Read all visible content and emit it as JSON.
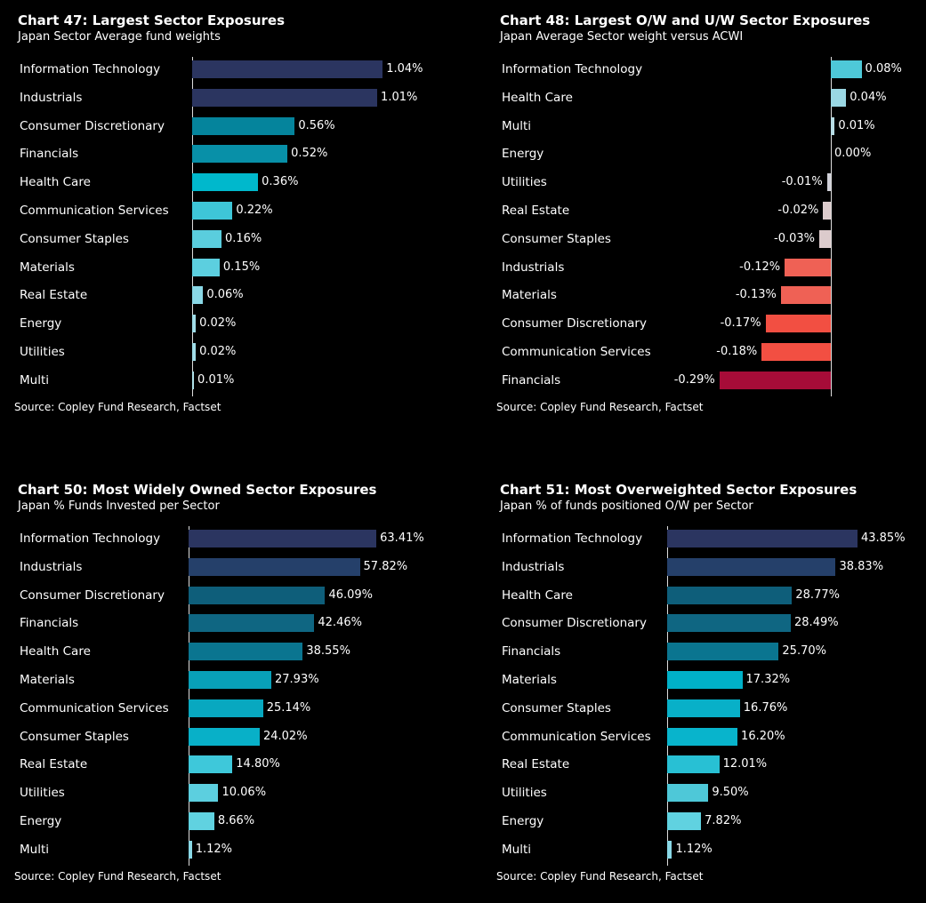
{
  "chart_data": [
    {
      "type": "bar",
      "title": "Chart 47:  Largest Sector Exposures",
      "subtitle": "Japan Sector Average fund weights",
      "source": "Source:  Copley Fund Research, Factset",
      "categories": [
        "Information Technology",
        "Industrials",
        "Consumer Discretionary",
        "Financials",
        "Health Care",
        "Communication Services",
        "Consumer Staples",
        "Materials",
        "Real Estate",
        "Energy",
        "Utilities",
        "Multi"
      ],
      "values": [
        1.04,
        1.01,
        0.56,
        0.52,
        0.36,
        0.22,
        0.16,
        0.15,
        0.06,
        0.02,
        0.02,
        0.01
      ],
      "labels": [
        "1.04%",
        "1.01%",
        "0.56%",
        "0.52%",
        "0.36%",
        "0.22%",
        "0.16%",
        "0.15%",
        "0.06%",
        "0.02%",
        "0.02%",
        "0.01%"
      ],
      "colors": [
        "#2b3560",
        "#2b3560",
        "#05849c",
        "#0890a8",
        "#00b8cc",
        "#3ec6d8",
        "#5acddd",
        "#5ccfdf",
        "#8ad8e6",
        "#a0dde8",
        "#a0dde8",
        "#b0e2ea"
      ],
      "unit": "%"
    },
    {
      "type": "bar",
      "title": "Chart 48:  Largest O/W and U/W Sector Exposures",
      "subtitle": "Japan Average Sector weight versus ACWI",
      "source": "Source:  Copley Fund Research, Factset",
      "categories": [
        "Information Technology",
        "Health Care",
        "Multi",
        "Energy",
        "Utilities",
        "Real Estate",
        "Consumer Staples",
        "Industrials",
        "Materials",
        "Consumer Discretionary",
        "Communication Services",
        "Financials"
      ],
      "values": [
        0.08,
        0.04,
        0.01,
        0.0,
        -0.01,
        -0.02,
        -0.03,
        -0.12,
        -0.13,
        -0.17,
        -0.18,
        -0.29
      ],
      "labels": [
        "0.08%",
        "0.04%",
        "0.01%",
        "0.00%",
        "-0.01%",
        "-0.02%",
        "-0.03%",
        "-0.12%",
        "-0.13%",
        "-0.17%",
        "-0.18%",
        "-0.29%"
      ],
      "colors": [
        "#4ec8d8",
        "#9ad7e3",
        "#b8dde5",
        "#cccccc",
        "#d0d0d8",
        "#dccbcc",
        "#dccbcc",
        "#ef6155",
        "#ef6155",
        "#f24f42",
        "#f24f42",
        "#a60c38"
      ],
      "unit": "%"
    },
    {
      "type": "bar",
      "title": "Chart 50:  Most Widely Owned Sector Exposures",
      "subtitle": "Japan % Funds Invested per Sector",
      "source": "Source:  Copley Fund Research, Factset",
      "categories": [
        "Information Technology",
        "Industrials",
        "Consumer Discretionary",
        "Financials",
        "Health Care",
        "Materials",
        "Communication Services",
        "Consumer Staples",
        "Real Estate",
        "Utilities",
        "Energy",
        "Multi"
      ],
      "values": [
        63.41,
        57.82,
        46.09,
        42.46,
        38.55,
        27.93,
        25.14,
        24.02,
        14.8,
        10.06,
        8.66,
        1.12
      ],
      "labels": [
        "63.41%",
        "57.82%",
        "46.09%",
        "42.46%",
        "38.55%",
        "27.93%",
        "25.14%",
        "24.02%",
        "14.80%",
        "10.06%",
        "8.66%",
        "1.12%"
      ],
      "colors": [
        "#2b3560",
        "#25406a",
        "#0e5e7a",
        "#0f6682",
        "#0a7590",
        "#08a0b8",
        "#08a8c0",
        "#08b0c8",
        "#3ec8da",
        "#5ccfdf",
        "#60d2e0",
        "#8ad8e6"
      ],
      "unit": "%"
    },
    {
      "type": "bar",
      "title": "Chart 51:  Most Overweighted Sector Exposures",
      "subtitle": "Japan % of funds positioned O/W per Sector",
      "source": "Source:  Copley Fund Research, Factset",
      "categories": [
        "Information Technology",
        "Industrials",
        "Health Care",
        "Consumer Discretionary",
        "Financials",
        "Materials",
        "Consumer Staples",
        "Communication Services",
        "Real Estate",
        "Utilities",
        "Energy",
        "Multi"
      ],
      "values": [
        43.85,
        38.83,
        28.77,
        28.49,
        25.7,
        17.32,
        16.76,
        16.2,
        12.01,
        9.5,
        7.82,
        1.12
      ],
      "labels": [
        "43.85%",
        "38.83%",
        "28.77%",
        "28.49%",
        "25.70%",
        "17.32%",
        "16.76%",
        "16.20%",
        "12.01%",
        "9.50%",
        "7.82%",
        "1.12%"
      ],
      "colors": [
        "#2b3560",
        "#25406a",
        "#0e5e7a",
        "#0f6682",
        "#0a7590",
        "#00b0c8",
        "#08b0c8",
        "#08b4cc",
        "#28c0d4",
        "#4ec8d8",
        "#60d2e0",
        "#8ad8e6"
      ],
      "unit": "%"
    }
  ]
}
